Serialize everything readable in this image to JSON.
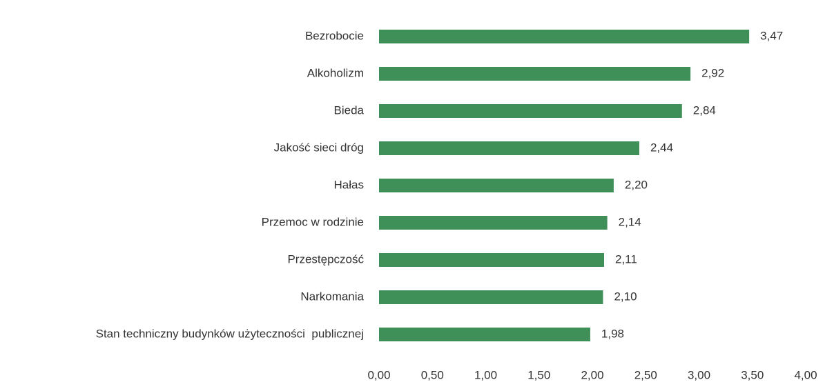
{
  "chart_data": {
    "type": "barh",
    "categories": [
      "Bezrobocie",
      "Alkoholizm",
      "Bieda",
      "Jakość sieci dróg",
      "Hałas",
      "Przemoc w rodzinie",
      "Przestępczość",
      "Narkomania",
      "Stan techniczny budynków użyteczności  publicznej"
    ],
    "values": [
      3.47,
      2.92,
      2.84,
      2.44,
      2.2,
      2.14,
      2.11,
      2.1,
      1.98
    ],
    "value_labels": [
      "3,47",
      "2,92",
      "2,84",
      "2,44",
      "2,20",
      "2,14",
      "2,11",
      "2,10",
      "1,98"
    ],
    "color": "#3f8f58",
    "xlim": [
      0,
      4
    ],
    "xticks": [
      {
        "value": 0,
        "label": "0,00"
      },
      {
        "value": 0.5,
        "label": "0,50"
      },
      {
        "value": 1,
        "label": "1,00"
      },
      {
        "value": 1.5,
        "label": "1,50"
      },
      {
        "value": 2,
        "label": "2,00"
      },
      {
        "value": 2.5,
        "label": "2,50"
      },
      {
        "value": 3,
        "label": "3,00"
      },
      {
        "value": 3.5,
        "label": "3,50"
      },
      {
        "value": 4,
        "label": "4,00"
      }
    ],
    "grid": false
  }
}
